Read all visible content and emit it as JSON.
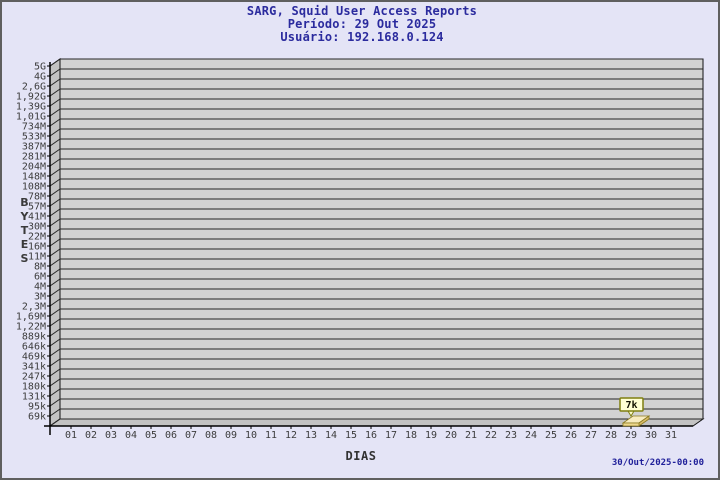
{
  "header": {
    "title": "SARG, Squid User Access Reports",
    "period": "Período: 29 Out 2025",
    "user": "Usuário: 192.168.0.124"
  },
  "footer": {
    "timestamp": "30/Out/2025-00:00"
  },
  "chart_data": {
    "type": "bar",
    "title": "SARG, Squid User Access Reports",
    "xlabel": "DIAS",
    "ylabel": "BYTES",
    "y_scale": "logarithmic-like",
    "grid": "horizontal-only",
    "legend": "none",
    "x_ticks": [
      "01",
      "02",
      "03",
      "04",
      "05",
      "06",
      "07",
      "08",
      "09",
      "10",
      "11",
      "12",
      "13",
      "14",
      "15",
      "16",
      "17",
      "18",
      "19",
      "20",
      "21",
      "22",
      "23",
      "24",
      "25",
      "26",
      "27",
      "28",
      "29",
      "30",
      "31"
    ],
    "y_ticks": [
      "5G",
      "4G",
      "2,6G",
      "1,92G",
      "1,39G",
      "1,01G",
      "734M",
      "533M",
      "387M",
      "281M",
      "204M",
      "148M",
      "108M",
      "78M",
      "57M",
      "41M",
      "30M",
      "22M",
      "16M",
      "11M",
      "8M",
      "6M",
      "4M",
      "3M",
      "2,3M",
      "1,69M",
      "1,22M",
      "889k",
      "646k",
      "469k",
      "341k",
      "247k",
      "180k",
      "131k",
      "95k",
      "69k"
    ],
    "ylim_labels": [
      "69k",
      "5G"
    ],
    "bars": [
      {
        "day": "29",
        "label": "7k",
        "value": 7000
      }
    ],
    "colors": {
      "plot_back": "#d2d2d2",
      "wall": "#c3c3c3",
      "gridline": "#262626",
      "axis": "#000000",
      "tick_text": "#3c3c3c",
      "bar_top": "#f8ecc0",
      "bar_front": "#edd78e",
      "bar_side": "#d9bc6a",
      "bar_edge": "#8a7a20",
      "callout_bg": "#ffffd4",
      "callout_border": "#7f7f10",
      "callout_text": "#111100"
    }
  }
}
